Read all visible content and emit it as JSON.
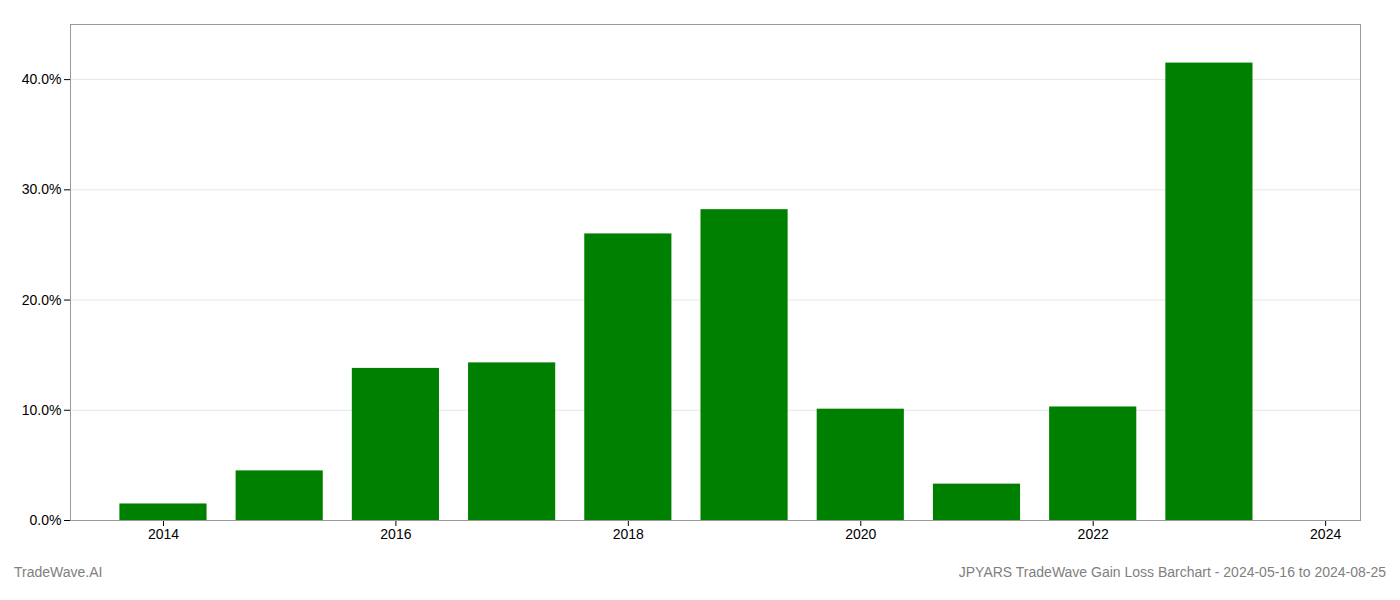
{
  "chart_data": {
    "type": "bar",
    "x": [
      2014,
      2015,
      2016,
      2017,
      2018,
      2019,
      2020,
      2021,
      2022,
      2023
    ],
    "values": [
      0.015,
      0.045,
      0.138,
      0.143,
      0.26,
      0.282,
      0.101,
      0.033,
      0.103,
      0.415
    ],
    "color": "#008000",
    "xlim": [
      2013.2,
      2024.3
    ],
    "xticks": [
      2014,
      2016,
      2018,
      2020,
      2022,
      2024
    ],
    "ylim": [
      0,
      0.45
    ],
    "yticks": [
      {
        "value": 0.0,
        "label": "0.0%"
      },
      {
        "value": 0.1,
        "label": "10.0%"
      },
      {
        "value": 0.2,
        "label": "20.0%"
      },
      {
        "value": 0.3,
        "label": "30.0%"
      },
      {
        "value": 0.4,
        "label": "40.0%"
      }
    ],
    "grid": true,
    "annotations": [
      "TradeWave.AI",
      "JPYARS TradeWave Gain Loss Barchart - 2024-05-16 to 2024-08-25"
    ]
  }
}
